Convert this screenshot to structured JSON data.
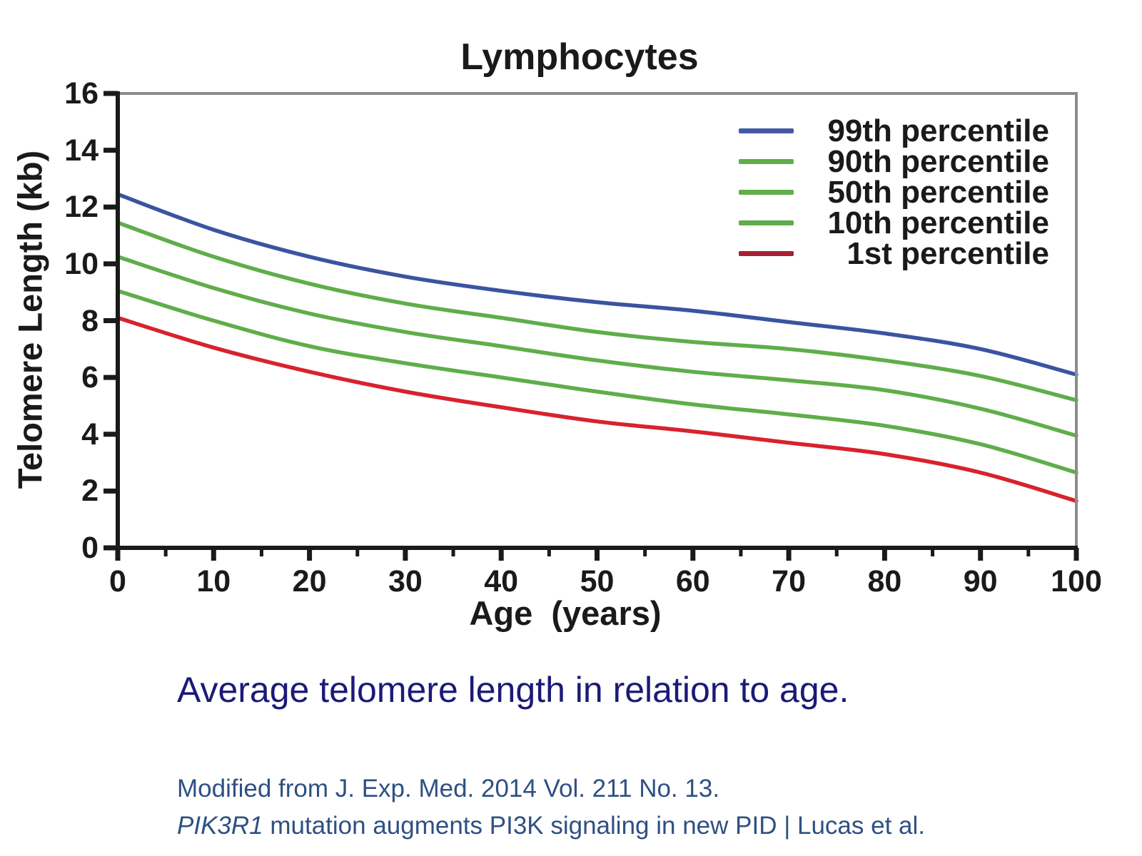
{
  "chart_data": {
    "type": "line",
    "title": "Lymphocytes",
    "xlabel": "Age  (years)",
    "ylabel": "Telomere Length (kb)",
    "x": [
      0,
      10,
      20,
      30,
      40,
      50,
      60,
      70,
      80,
      90,
      100
    ],
    "xlim": [
      0,
      100
    ],
    "ylim": [
      0,
      16
    ],
    "xticks": [
      0,
      10,
      20,
      30,
      40,
      50,
      60,
      70,
      80,
      90,
      100
    ],
    "xtick_minor_step": 5,
    "yticks": [
      0,
      2,
      4,
      6,
      8,
      10,
      12,
      14,
      16
    ],
    "grid": false,
    "legend_position": "top-right-inside",
    "axis_color": "#1a1a1a",
    "frame_color": "#8c8c8c",
    "series": [
      {
        "name": "99th percentile",
        "color": "#3b54a0",
        "legend_color": "#4559a6",
        "values": [
          12.45,
          11.2,
          10.25,
          9.55,
          9.05,
          8.65,
          8.35,
          7.95,
          7.55,
          7.0,
          6.1
        ]
      },
      {
        "name": "90th percentile",
        "color": "#60ad4b",
        "legend_color": "#60ad4b",
        "values": [
          11.45,
          10.25,
          9.3,
          8.6,
          8.1,
          7.6,
          7.25,
          7.0,
          6.6,
          6.05,
          5.2
        ]
      },
      {
        "name": "50th percentile",
        "color": "#60ad4b",
        "legend_color": "#60ad4b",
        "values": [
          10.25,
          9.15,
          8.25,
          7.6,
          7.1,
          6.6,
          6.2,
          5.9,
          5.55,
          4.9,
          3.95
        ]
      },
      {
        "name": "10th percentile",
        "color": "#60ad4b",
        "legend_color": "#60ad4b",
        "values": [
          9.05,
          8.0,
          7.1,
          6.5,
          6.0,
          5.5,
          5.05,
          4.7,
          4.3,
          3.65,
          2.65
        ]
      },
      {
        "name": "1st percentile",
        "color": "#d8222d",
        "legend_color": "#a81f33",
        "values": [
          8.1,
          7.05,
          6.2,
          5.5,
          4.95,
          4.45,
          4.1,
          3.7,
          3.3,
          2.65,
          1.65
        ]
      }
    ]
  },
  "caption": {
    "text": "Average telomere length in relation to age.",
    "color": "#1b1a78"
  },
  "attribution": {
    "line1": "Modified from J. Exp. Med. 2014 Vol. 211 No. 13.",
    "line2_italic": "PIK3R1",
    "line2_rest": " mutation augments PI3K signaling in new PID | Lucas et al.",
    "color": "#2e5083"
  }
}
